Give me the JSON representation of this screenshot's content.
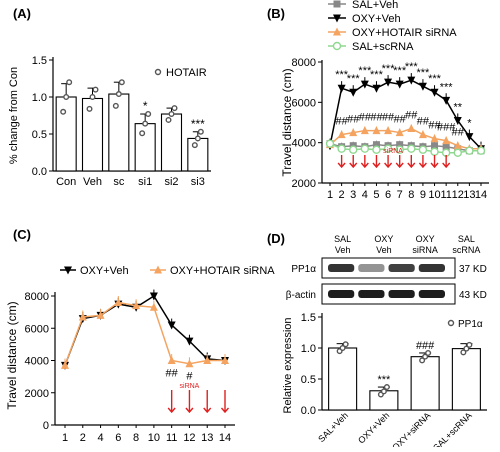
{
  "chart_data": [
    {
      "panel": "(A)",
      "type": "bar",
      "ylabel": "% change from Con",
      "ylim": [
        0,
        1.5
      ],
      "yticks": [
        "0.0",
        "0.5",
        "1.0",
        "1.5"
      ],
      "categories": [
        "Con",
        "Veh",
        "sc",
        "si1",
        "si2",
        "si3"
      ],
      "values": [
        1.0,
        0.98,
        1.04,
        0.64,
        0.77,
        0.44
      ],
      "errors": [
        0.18,
        0.14,
        0.16,
        0.13,
        0.08,
        0.09
      ],
      "points": [
        [
          0.8,
          1.0,
          1.2
        ],
        [
          0.84,
          1.0,
          1.1
        ],
        [
          0.88,
          1.04,
          1.2
        ],
        [
          0.51,
          0.64,
          0.77
        ],
        [
          0.69,
          0.77,
          0.85
        ],
        [
          0.35,
          0.44,
          0.53
        ]
      ],
      "significance": [
        "",
        "",
        "",
        "*",
        "",
        "***"
      ],
      "legend": [
        "HOTAIR"
      ],
      "legend_position": "top-right"
    },
    {
      "panel": "(B)",
      "type": "line",
      "ylabel": "Travel distance (cm)",
      "ylim": [
        2000,
        8000
      ],
      "yticks": [
        "2000",
        "4000",
        "6000",
        "8000"
      ],
      "x": [
        "1",
        "2",
        "3",
        "4",
        "5",
        "6",
        "7",
        "8",
        "9",
        "10",
        "11",
        "12",
        "13",
        "14"
      ],
      "series": [
        {
          "name": "SAL+Veh",
          "color": "#888888",
          "marker": "square",
          "values": [
            3950,
            3800,
            3850,
            3800,
            3900,
            3850,
            3900,
            3850,
            3800,
            3850,
            3800,
            3700,
            3600,
            3600
          ]
        },
        {
          "name": "OXY+Veh",
          "color": "#000000",
          "marker": "triangle-down",
          "values": [
            3850,
            6700,
            6500,
            6900,
            6700,
            7000,
            6900,
            7100,
            6800,
            6500,
            6100,
            5100,
            4300,
            3700
          ]
        },
        {
          "name": "OXY+HOTAIR siRNA",
          "color": "#f4a460",
          "marker": "triangle-up",
          "values": [
            3900,
            4400,
            4500,
            4600,
            4600,
            4600,
            4500,
            4700,
            4400,
            4200,
            4100,
            3850,
            3700,
            3700
          ]
        },
        {
          "name": "SAL+scRNA",
          "color": "#8fd88f",
          "marker": "circle",
          "values": [
            3950,
            3700,
            3650,
            3700,
            3650,
            3700,
            3650,
            3700,
            3650,
            3550,
            3500,
            3500,
            3600,
            3600
          ]
        }
      ],
      "stars": [
        "",
        "***",
        "***",
        "***",
        "***",
        "***",
        "***",
        "***",
        "***",
        "***",
        "***",
        "**",
        "*",
        ""
      ],
      "hashes": [
        "",
        "##",
        "##",
        "##",
        "##",
        "##",
        "##",
        "##",
        "##",
        "##",
        "###",
        "##",
        "",
        ""
      ],
      "annotation": "siRNA",
      "legend_position": "top-right"
    },
    {
      "panel": "(C)",
      "type": "line",
      "ylabel": "Travel distance (cm)",
      "ylim": [
        0,
        8000
      ],
      "yticks": [
        "0",
        "2000",
        "4000",
        "6000",
        "8000"
      ],
      "x": [
        "1",
        "2",
        "4",
        "6",
        "8",
        "10",
        "11",
        "12",
        "13",
        "14"
      ],
      "series": [
        {
          "name": "OXY+Veh",
          "color": "#000000",
          "marker": "triangle-down",
          "values": [
            3700,
            6600,
            6800,
            7500,
            7300,
            8000,
            6200,
            5200,
            4100,
            4000
          ]
        },
        {
          "name": "OXY+HOTAIR siRNA",
          "color": "#f4a460",
          "marker": "triangle-up",
          "values": [
            3700,
            6700,
            6800,
            7600,
            7400,
            7300,
            4000,
            3800,
            4000,
            4000
          ]
        }
      ],
      "hashes": [
        "",
        "",
        "",
        "",
        "",
        "",
        "##",
        "#",
        "",
        ""
      ],
      "annotation": "siRNA",
      "legend_position": "top"
    },
    {
      "panel": "(D)",
      "type": "bar",
      "ylabel": "Relative expression",
      "ylim": [
        0,
        1.5
      ],
      "yticks": [
        "0.0",
        "0.5",
        "1.0",
        "1.5"
      ],
      "categories": [
        "SAL+Veh",
        "OXY+Veh",
        "OXY+siRNA",
        "SAL+scRNA"
      ],
      "values": [
        1.0,
        0.31,
        0.86,
        0.99
      ],
      "errors": [
        0.07,
        0.06,
        0.06,
        0.08
      ],
      "points": [
        [
          0.95,
          1.0,
          1.06
        ],
        [
          0.25,
          0.3,
          0.37
        ],
        [
          0.8,
          0.86,
          0.92
        ],
        [
          0.93,
          0.99,
          1.05
        ]
      ],
      "significance": [
        "",
        "***",
        "###",
        ""
      ],
      "legend": [
        "PP1α"
      ],
      "legend_position": "top-right",
      "blot": {
        "lane_labels": [
          [
            "SAL",
            "Veh"
          ],
          [
            "OXY",
            "Veh"
          ],
          [
            "OXY",
            "siRNA"
          ],
          [
            "SAL",
            "scRNA"
          ]
        ],
        "rows": [
          {
            "protein": "PP1α",
            "size": "37 KD",
            "intensity": [
              0.85,
              0.45,
              0.8,
              0.85
            ]
          },
          {
            "protein": "β-actin",
            "size": "43 KD",
            "intensity": [
              0.95,
              0.95,
              0.95,
              0.95
            ]
          }
        ]
      }
    }
  ]
}
